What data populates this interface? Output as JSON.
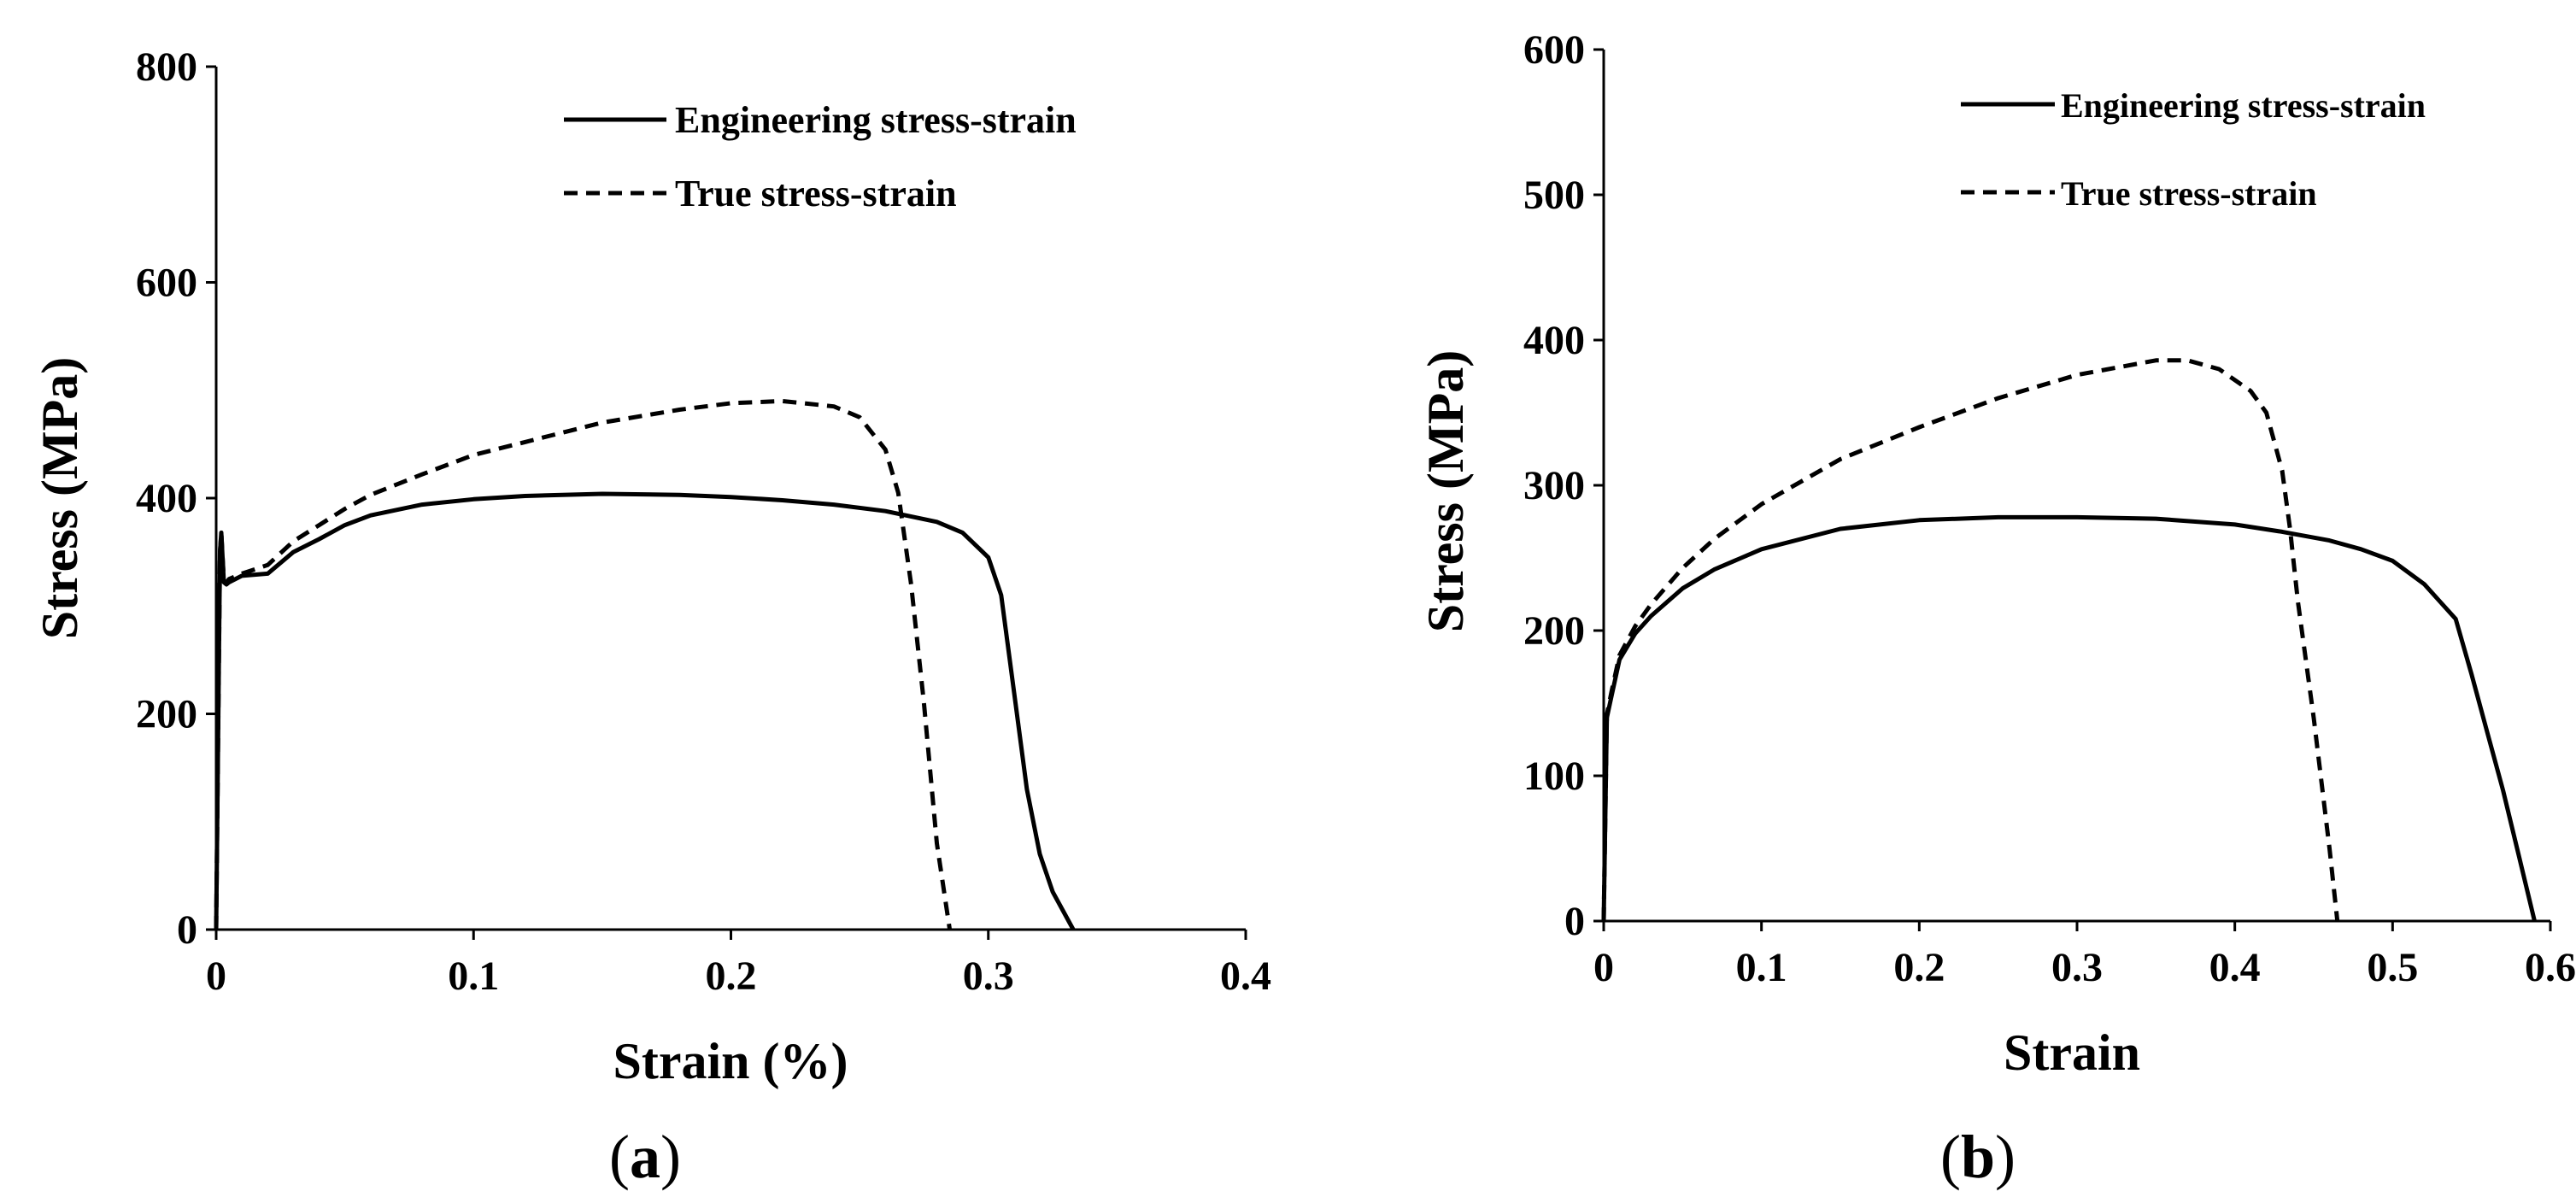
{
  "chart_data": [
    {
      "type": "line",
      "panel_label": "a",
      "title": "",
      "xlabel": "Strain (%)",
      "ylabel": "Stress (MPa)",
      "xlim": [
        0,
        0.4
      ],
      "ylim": [
        0,
        800
      ],
      "xticks": [
        0,
        0.1,
        0.2,
        0.3,
        0.4
      ],
      "xtick_labels": [
        "0",
        "0.1",
        "0.2",
        "0.3",
        "0.4"
      ],
      "yticks": [
        0,
        200,
        400,
        600,
        800
      ],
      "ytick_labels": [
        "0",
        "200",
        "400",
        "600",
        "800"
      ],
      "grid": false,
      "legend_position": "top-right",
      "series": [
        {
          "name": "Engineering stress-strain",
          "style": "solid",
          "x": [
            0,
            0.0015,
            0.002,
            0.003,
            0.004,
            0.005,
            0.01,
            0.02,
            0.025,
            0.03,
            0.04,
            0.05,
            0.06,
            0.08,
            0.1,
            0.12,
            0.15,
            0.18,
            0.2,
            0.22,
            0.24,
            0.26,
            0.28,
            0.29,
            0.3,
            0.305,
            0.31,
            0.315,
            0.32,
            0.325,
            0.333
          ],
          "y": [
            0,
            350,
            368,
            322,
            320,
            322,
            328,
            330,
            340,
            350,
            362,
            375,
            384,
            394,
            399,
            402,
            404,
            403,
            401,
            398,
            394,
            388,
            378,
            368,
            345,
            310,
            220,
            130,
            70,
            35,
            0
          ]
        },
        {
          "name": "True stress-strain",
          "style": "dashed",
          "x": [
            0,
            0.0015,
            0.002,
            0.003,
            0.004,
            0.005,
            0.01,
            0.02,
            0.03,
            0.04,
            0.05,
            0.06,
            0.08,
            0.1,
            0.12,
            0.15,
            0.18,
            0.2,
            0.22,
            0.24,
            0.25,
            0.26,
            0.265,
            0.27,
            0.275,
            0.28,
            0.285
          ],
          "y": [
            0,
            350,
            368,
            323,
            322,
            325,
            330,
            338,
            360,
            375,
            390,
            403,
            422,
            440,
            452,
            470,
            482,
            488,
            490,
            485,
            475,
            445,
            405,
            320,
            210,
            80,
            0
          ]
        }
      ]
    },
    {
      "type": "line",
      "panel_label": "b",
      "title": "",
      "xlabel": "Strain",
      "ylabel": "Stress (MPa)",
      "xlim": [
        0,
        0.6
      ],
      "ylim": [
        0,
        600
      ],
      "xticks": [
        0,
        0.1,
        0.2,
        0.3,
        0.4,
        0.5,
        0.6
      ],
      "xtick_labels": [
        "0",
        "0.1",
        "0.2",
        "0.3",
        "0.4",
        "0.5",
        "0.6"
      ],
      "yticks": [
        0,
        100,
        200,
        300,
        400,
        500,
        600
      ],
      "ytick_labels": [
        "0",
        "100",
        "200",
        "300",
        "400",
        "500",
        "600"
      ],
      "grid": false,
      "legend_position": "top-right",
      "series": [
        {
          "name": "Engineering stress-strain",
          "style": "solid",
          "x": [
            0,
            0.002,
            0.005,
            0.01,
            0.02,
            0.03,
            0.05,
            0.07,
            0.1,
            0.15,
            0.2,
            0.25,
            0.3,
            0.35,
            0.4,
            0.43,
            0.46,
            0.48,
            0.5,
            0.51,
            0.52,
            0.53,
            0.54,
            0.55,
            0.56,
            0.57,
            0.58,
            0.59
          ],
          "y": [
            0,
            140,
            155,
            180,
            198,
            210,
            229,
            242,
            256,
            270,
            276,
            278,
            278,
            277,
            273,
            268,
            262,
            256,
            248,
            240,
            232,
            220,
            208,
            170,
            130,
            90,
            45,
            0
          ]
        },
        {
          "name": "True stress-strain",
          "style": "dashed",
          "x": [
            0,
            0.002,
            0.005,
            0.01,
            0.02,
            0.03,
            0.05,
            0.07,
            0.1,
            0.15,
            0.2,
            0.25,
            0.3,
            0.35,
            0.37,
            0.39,
            0.41,
            0.42,
            0.43,
            0.435,
            0.44,
            0.45,
            0.46,
            0.465
          ],
          "y": [
            0,
            142,
            158,
            183,
            203,
            218,
            243,
            263,
            287,
            318,
            340,
            360,
            376,
            386,
            386,
            380,
            365,
            350,
            310,
            270,
            220,
            140,
            50,
            0
          ]
        }
      ]
    }
  ]
}
